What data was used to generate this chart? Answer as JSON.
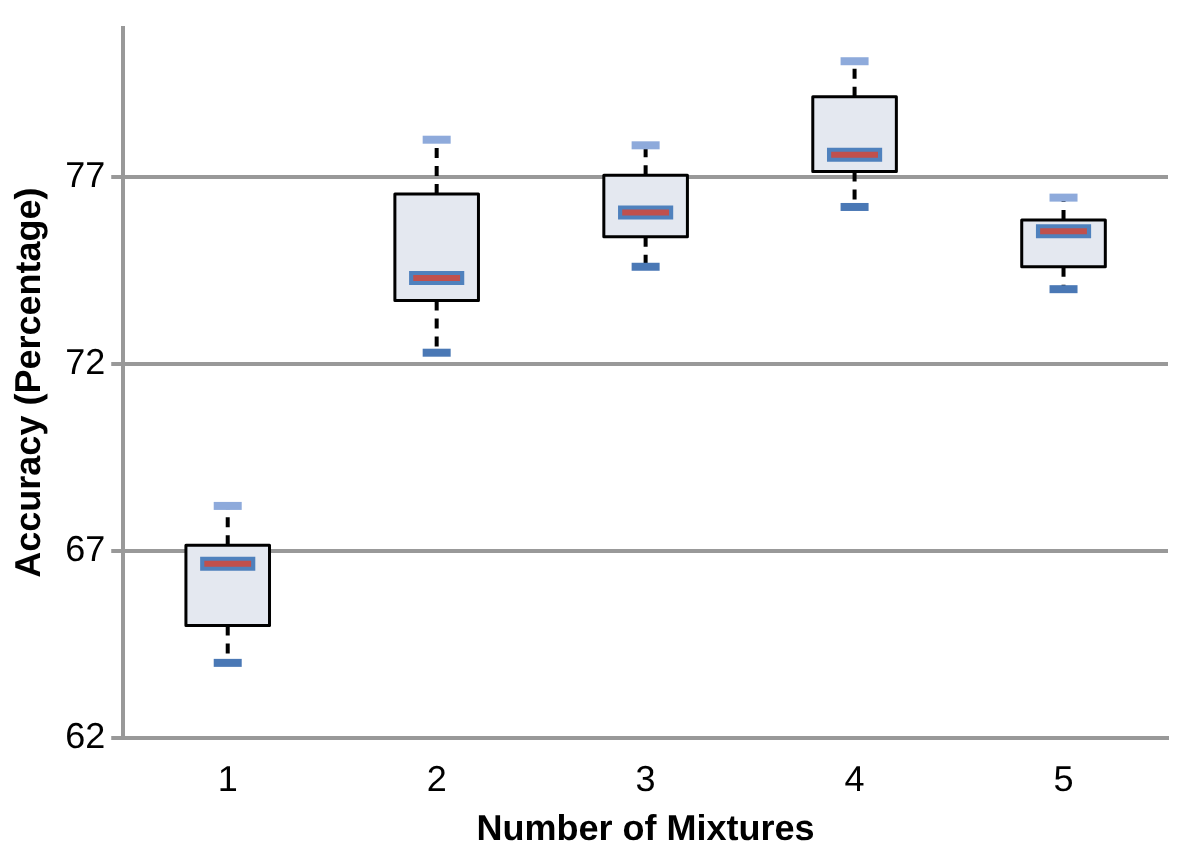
{
  "chart_data": {
    "type": "box",
    "xlabel": "Number of Mixtures",
    "ylabel": "Accuracy (Percentage)",
    "categories": [
      "1",
      "2",
      "3",
      "4",
      "5"
    ],
    "boxes": [
      {
        "low": 64.0,
        "q1": 65.0,
        "median": 66.65,
        "q3": 67.15,
        "high": 68.2
      },
      {
        "low": 72.3,
        "q1": 73.7,
        "median": 74.3,
        "q3": 76.55,
        "high": 78.0
      },
      {
        "low": 74.6,
        "q1": 75.4,
        "median": 76.05,
        "q3": 77.05,
        "high": 77.85
      },
      {
        "low": 76.2,
        "q1": 77.15,
        "median": 77.6,
        "q3": 79.15,
        "high": 80.1
      },
      {
        "low": 74.0,
        "q1": 74.6,
        "median": 75.55,
        "q3": 75.85,
        "high": 76.45
      }
    ],
    "color": "#e4e8f0",
    "ylim": [
      62,
      81
    ],
    "yticks": [
      62,
      67,
      72,
      77
    ],
    "grid": "y",
    "legend": false
  }
}
